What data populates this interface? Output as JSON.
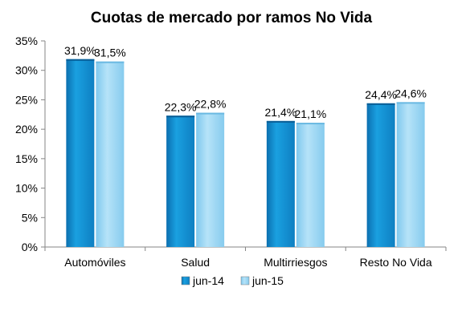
{
  "chart_data": {
    "type": "bar",
    "title": "Cuotas de mercado por ramos No Vida",
    "categories": [
      "Automóviles",
      "Salud",
      "Multirriesgos",
      "Resto No Vida"
    ],
    "series": [
      {
        "name": "jun-14",
        "values": [
          31.9,
          22.3,
          21.4,
          24.4
        ],
        "labels": [
          "31,9%",
          "22,3%",
          "21,4%",
          "24,4%"
        ],
        "color": "#1aa0e0"
      },
      {
        "name": "jun-15",
        "values": [
          31.5,
          22.8,
          21.1,
          24.6
        ],
        "labels": [
          "31,5%",
          "22,8%",
          "21,1%",
          "24,6%"
        ],
        "color": "#9fd9f5"
      }
    ],
    "ylim": [
      0,
      35
    ],
    "yticks": [
      0,
      5,
      10,
      15,
      20,
      25,
      30,
      35
    ],
    "ytick_labels": [
      "0%",
      "5%",
      "10%",
      "15%",
      "20%",
      "25%",
      "30%",
      "35%"
    ],
    "xlabel": "",
    "ylabel": "",
    "grid": false,
    "legend": "bottom"
  }
}
